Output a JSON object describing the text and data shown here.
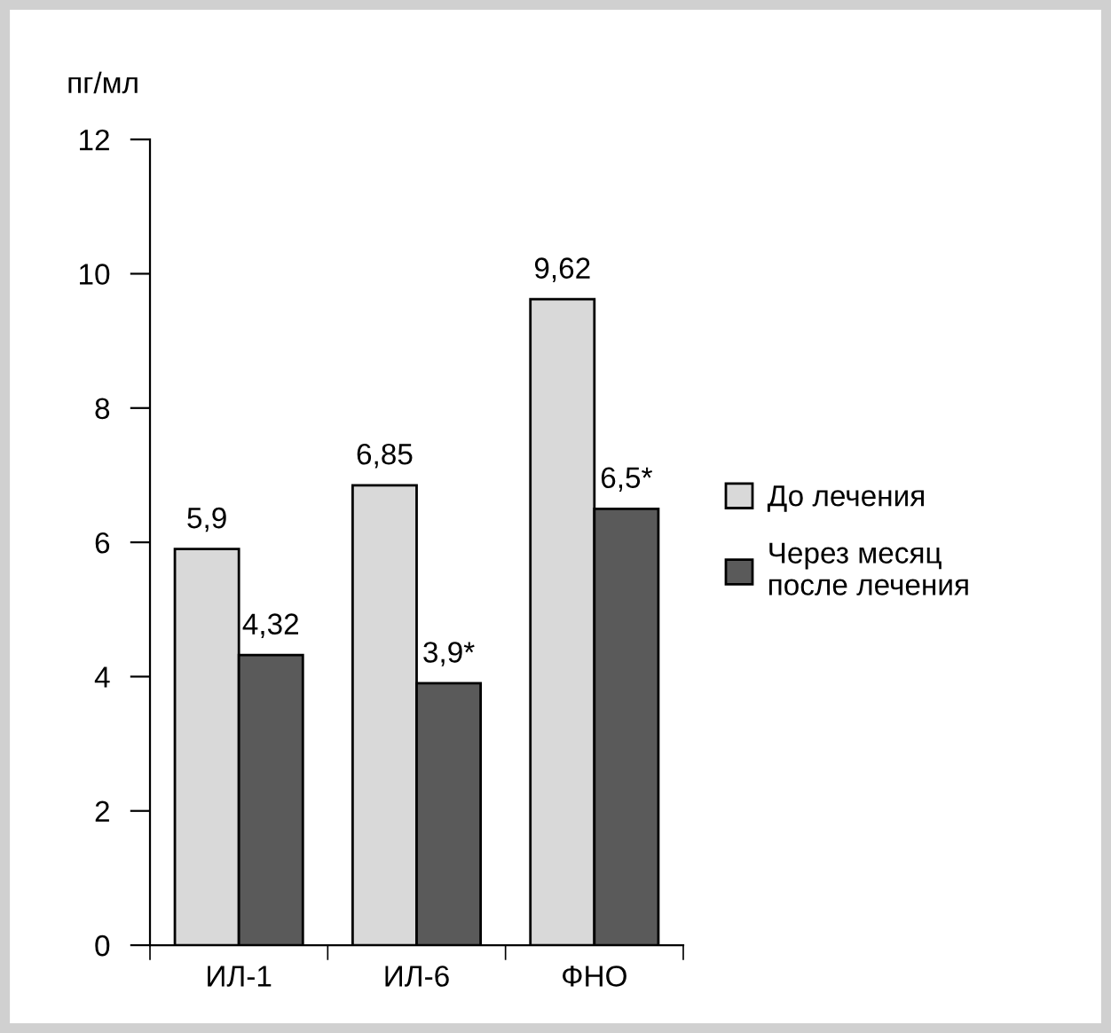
{
  "chart_data": {
    "type": "bar",
    "ylabel": "пг/мл",
    "categories": [
      "ИЛ-1",
      "ИЛ-6",
      "ФНО"
    ],
    "series": [
      {
        "name": "До лечения",
        "color": "#d9d9d9",
        "values": [
          5.9,
          6.85,
          9.62
        ],
        "value_labels": [
          "5,9",
          "6,85",
          "9,62"
        ]
      },
      {
        "name": "Через месяц\nпосле лечения",
        "color": "#5a5a5a",
        "values": [
          4.32,
          3.9,
          6.5
        ],
        "value_labels": [
          "4,32",
          "3,9*",
          "6,5*"
        ]
      }
    ],
    "ylim": [
      0,
      12
    ],
    "yticks": [
      0,
      2,
      4,
      6,
      8,
      10,
      12
    ],
    "grid": false,
    "legend": "right"
  }
}
